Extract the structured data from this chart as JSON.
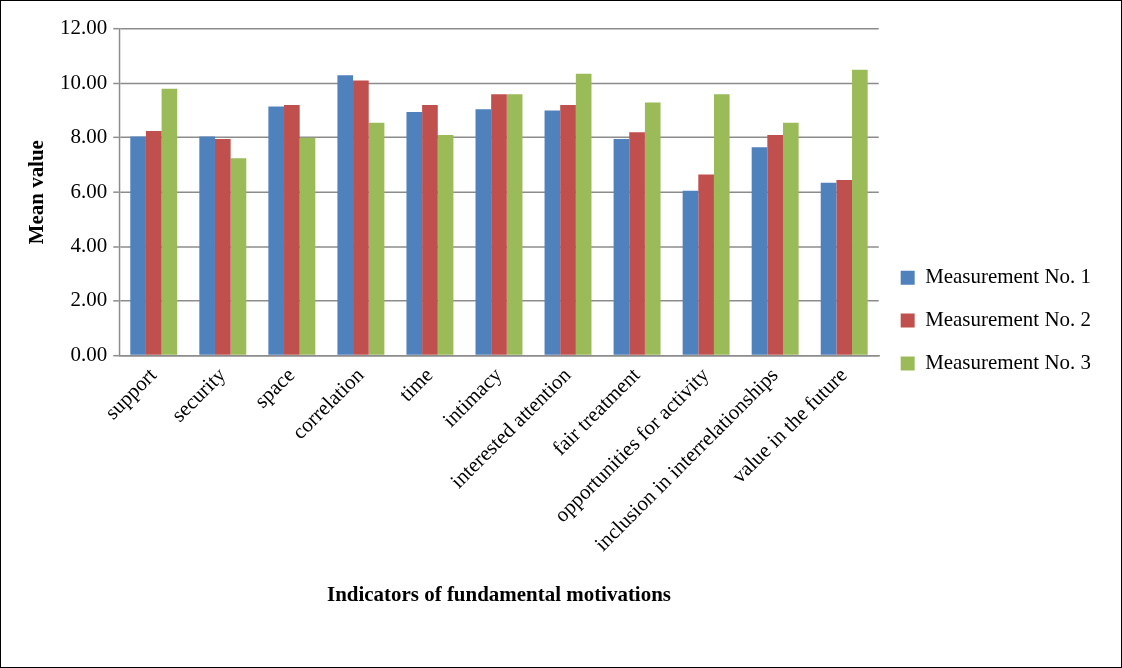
{
  "chart_data": {
    "type": "bar",
    "xlabel": "Indicators of fundamental motivations",
    "ylabel": "Mean value",
    "categories": [
      "support",
      "security",
      "space",
      "correlation",
      "time",
      "intimacy",
      "interested attention",
      "fair treatment",
      "opportunities for activity",
      "inclusion in interrelationships",
      "value in the future"
    ],
    "series": [
      {
        "name": "Measurement No. 1",
        "color": "#4f81bd",
        "values": [
          8.05,
          8.05,
          9.15,
          10.3,
          8.95,
          9.05,
          9.0,
          7.95,
          6.05,
          7.65,
          6.35
        ]
      },
      {
        "name": "Measurement No. 2",
        "color": "#c0504d",
        "values": [
          8.25,
          7.95,
          9.2,
          10.1,
          9.2,
          9.6,
          9.2,
          8.2,
          6.65,
          8.1,
          6.45
        ]
      },
      {
        "name": "Measurement No. 3",
        "color": "#9bbb59",
        "values": [
          9.8,
          7.25,
          8.0,
          8.55,
          8.1,
          9.6,
          10.35,
          9.3,
          9.6,
          8.55,
          10.5
        ]
      }
    ],
    "ylim": [
      0,
      12
    ],
    "yticks": [
      {
        "value": 0,
        "label": "0.00"
      },
      {
        "value": 2,
        "label": "2.00"
      },
      {
        "value": 4,
        "label": "4.00"
      },
      {
        "value": 6,
        "label": "6.00"
      },
      {
        "value": 8,
        "label": "8.00"
      },
      {
        "value": 10,
        "label": "10.00"
      },
      {
        "value": 12,
        "label": "12.00"
      }
    ],
    "grid": "y",
    "legend": "right"
  }
}
